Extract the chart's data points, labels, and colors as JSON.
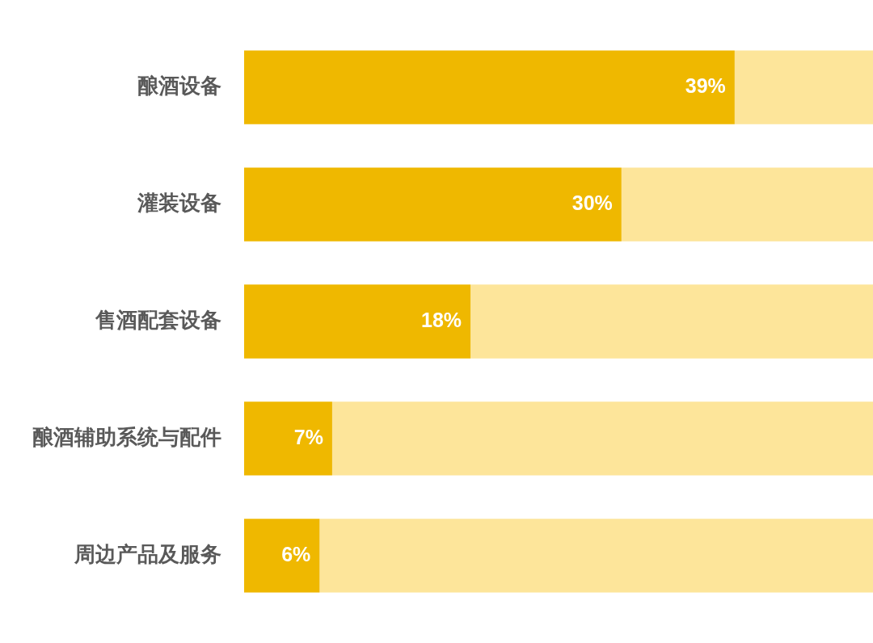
{
  "chart_data": {
    "type": "bar",
    "orientation": "horizontal",
    "stacked": true,
    "categories": [
      "酿酒设备",
      "灌装设备",
      "售酒配套设备",
      "酿酒辅助系统与配件",
      "周边产品及服务"
    ],
    "series": [
      {
        "color": "#efb800",
        "values": [
          39,
          30,
          18,
          7,
          6
        ],
        "value_labels": [
          "39%",
          "30%",
          "18%",
          "7%",
          "6%"
        ]
      },
      {
        "color": "#fde59a",
        "values": [
          11,
          20,
          32,
          43,
          44
        ]
      }
    ],
    "xlim": [
      0,
      50
    ],
    "tick_labels": "y",
    "legend": false
  }
}
